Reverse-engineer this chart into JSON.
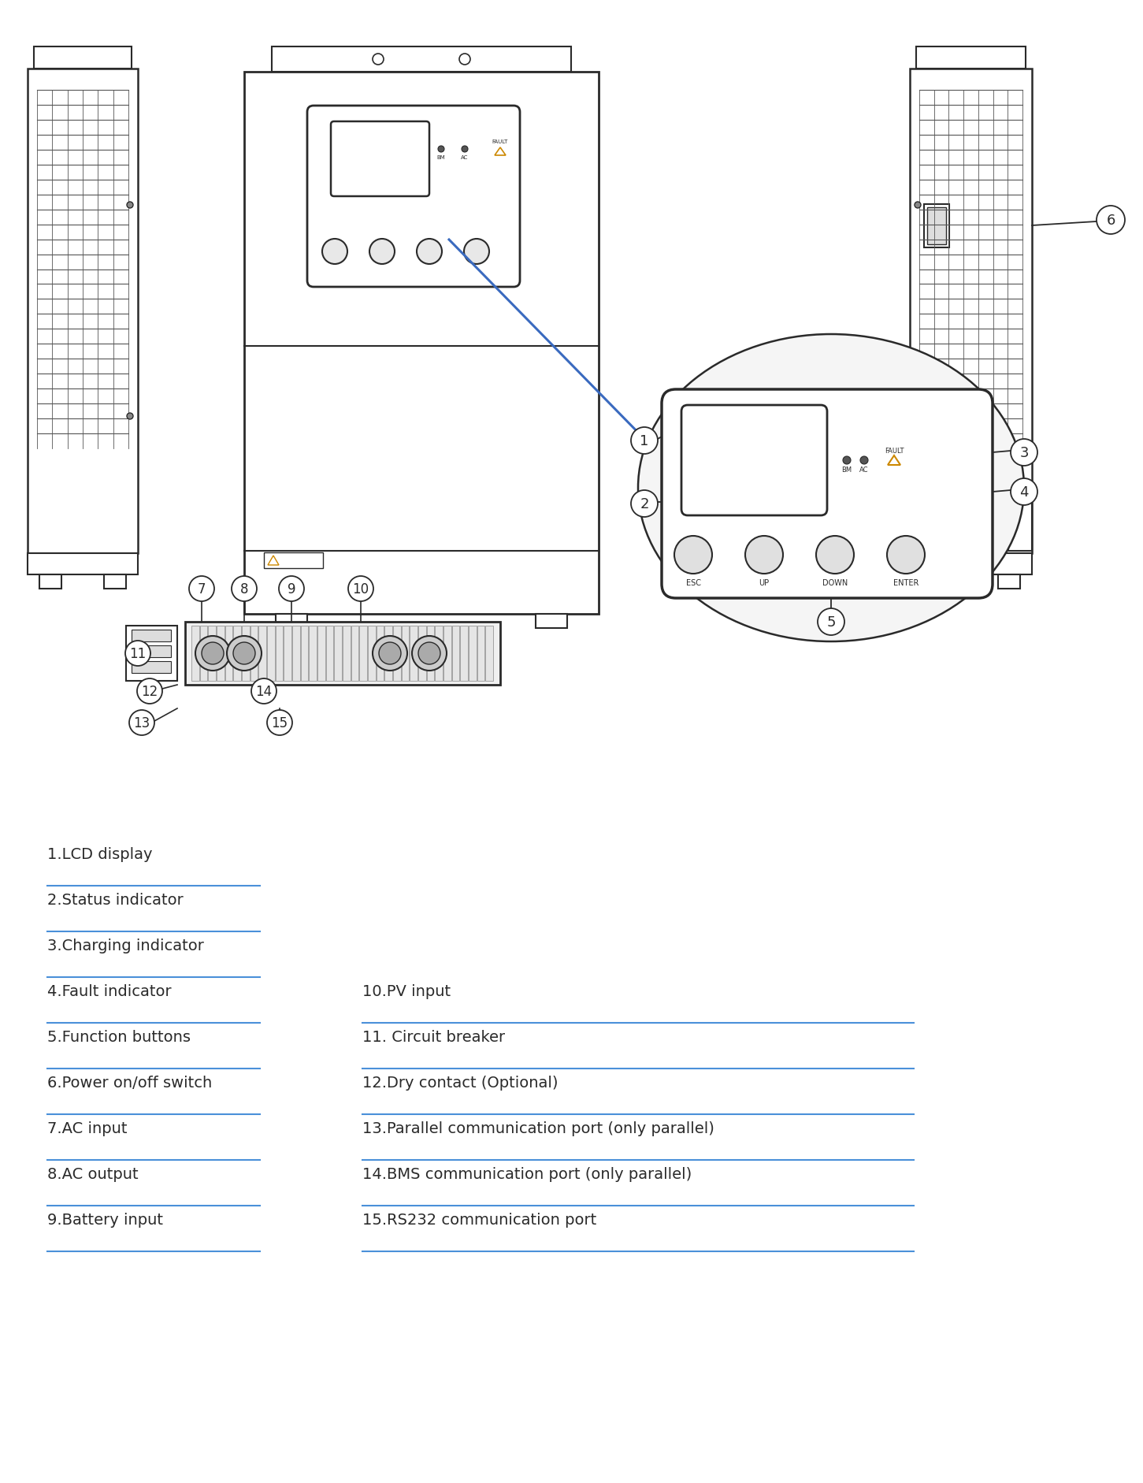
{
  "bg_color": "#ffffff",
  "line_color": "#2a2a2a",
  "blue_line_color": "#3a6abf",
  "label_font_size": 14,
  "left_labels": [
    "1.LCD display",
    "2.Status indicator",
    "3.Charging indicator",
    "4.Fault indicator",
    "5.Function buttons",
    "6.Power on/off switch",
    "7.AC input",
    "8.AC output",
    "9.Battery input"
  ],
  "right_labels": [
    "10.PV input",
    "11. Circuit breaker",
    "12.Dry contact (Optional)",
    "13.Parallel communication port (only parallel)",
    "14.BMS communication port (only parallel)",
    "15.RS232 communication port"
  ]
}
